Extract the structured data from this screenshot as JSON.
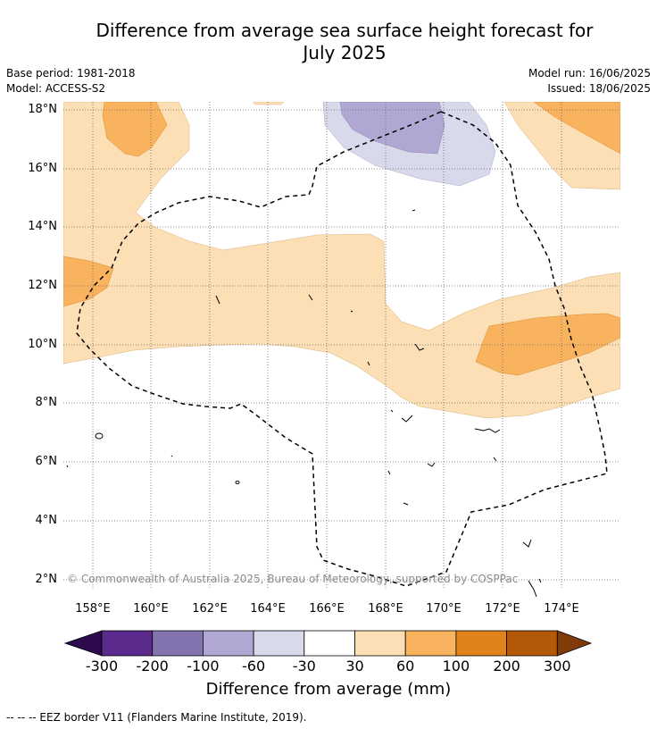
{
  "title_line1": "Difference from average sea surface height forecast for",
  "title_line2": "July 2025",
  "meta": {
    "base_period": "Base period: 1981-2018",
    "model": "Model: ACCESS-S2",
    "model_run": "Model run: 16/06/2025",
    "issued": "Issued: 18/06/2025"
  },
  "axes": {
    "lat_labels": [
      "18°N",
      "16°N",
      "14°N",
      "12°N",
      "10°N",
      "8°N",
      "6°N",
      "4°N",
      "2°N"
    ],
    "lon_labels": [
      "158°E",
      "160°E",
      "162°E",
      "164°E",
      "166°E",
      "168°E",
      "170°E",
      "172°E",
      "174°E"
    ]
  },
  "copyright": "© Commonwealth of Australia 2025, Bureau of Meteorology, supported by COSPPac",
  "colorbar": {
    "title": "Difference from average (mm)",
    "labels": [
      "-300",
      "-200",
      "-100",
      "-60",
      "-30",
      "30",
      "60",
      "100",
      "200",
      "300"
    ],
    "colors": [
      "#2d0a4e",
      "#5a2a8c",
      "#8374b0",
      "#b0a8d2",
      "#d9d9ec",
      "#ffffff",
      "#fddfb6",
      "#f9b35f",
      "#e0821c",
      "#b35806",
      "#7f3b08"
    ]
  },
  "footnote": "--  --  -- EEZ border V11 (Flanders Marine Institute, 2019)."
}
